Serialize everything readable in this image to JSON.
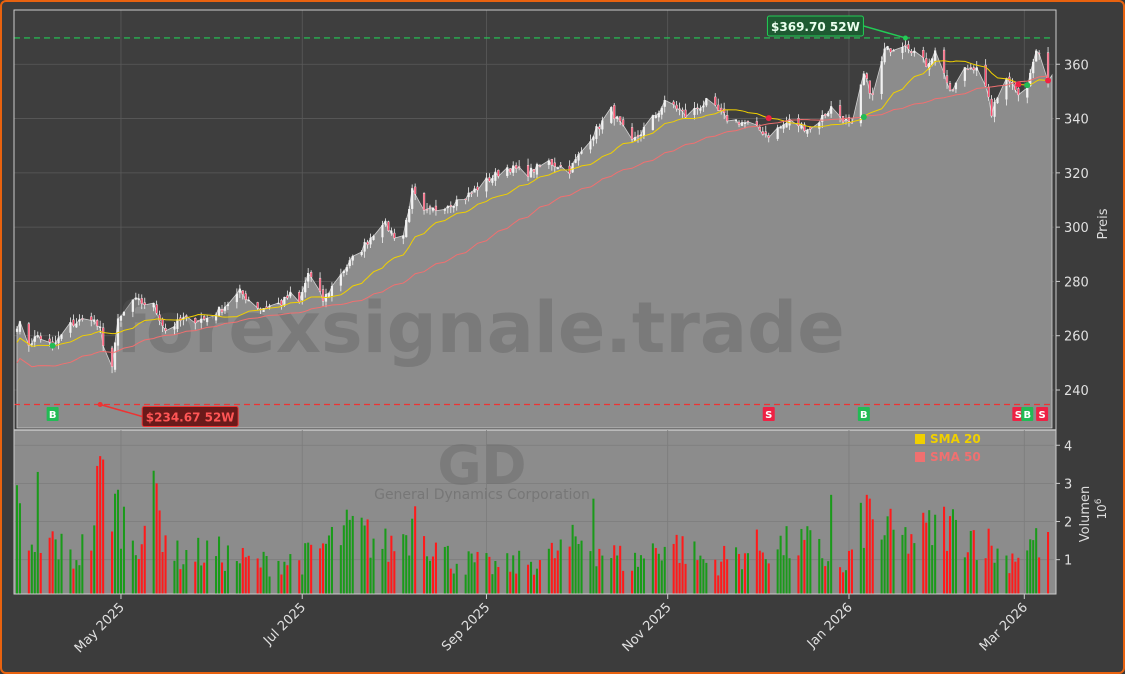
{
  "ticker": "GD",
  "company": "General Dynamics Corporation",
  "watermark": "forexsignale.trade",
  "colors": {
    "frame": "#e8620f",
    "background": "#3c3c3c",
    "plot_bg": "#8c8c8c",
    "up": "#1a9a1a",
    "down": "#ff1a1a",
    "sma20": "#f0d000",
    "sma50": "#f07070",
    "high_line": "#22cc55",
    "low_line": "#ee3333",
    "buy": "#22bb55",
    "sell": "#ee2244"
  },
  "chart_data": [
    {
      "type": "line",
      "panel": "price",
      "title": "",
      "xlabel": "",
      "ylabel": "Preis",
      "ylim": [
        226,
        380
      ],
      "yticks": [
        240,
        260,
        280,
        300,
        320,
        340,
        360
      ],
      "xlim": [
        "2025-03-26",
        "2026-03-11"
      ],
      "xticks": [
        {
          "date": "2025-05-01",
          "label": "May 2025"
        },
        {
          "date": "2025-07-01",
          "label": "Jul 2025"
        },
        {
          "date": "2025-09-01",
          "label": "Sep 2025"
        },
        {
          "date": "2025-11-01",
          "label": "Nov 2025"
        },
        {
          "date": "2026-01-01",
          "label": "Jan 2026"
        },
        {
          "date": "2026-03-01",
          "label": "Mar 2026"
        }
      ],
      "grid": true,
      "legend": "top-right",
      "price_anchors": [
        [
          "2025-03-28",
          264
        ],
        [
          "2025-03-31",
          257
        ],
        [
          "2025-04-03",
          260
        ],
        [
          "2025-04-08",
          256
        ],
        [
          "2025-04-14",
          264
        ],
        [
          "2025-04-21",
          267
        ],
        [
          "2025-04-24",
          262
        ],
        [
          "2025-04-27",
          242
        ],
        [
          "2025-04-30",
          265
        ],
        [
          "2025-05-05",
          273
        ],
        [
          "2025-05-12",
          271
        ],
        [
          "2025-05-16",
          262
        ],
        [
          "2025-05-22",
          266
        ],
        [
          "2025-05-29",
          266
        ],
        [
          "2025-06-04",
          270
        ],
        [
          "2025-06-10",
          276
        ],
        [
          "2025-06-17",
          270
        ],
        [
          "2025-06-24",
          272
        ],
        [
          "2025-06-27",
          275
        ],
        [
          "2025-06-30",
          272
        ],
        [
          "2025-07-03",
          283
        ],
        [
          "2025-07-08",
          273
        ],
        [
          "2025-07-14",
          283
        ],
        [
          "2025-07-21",
          292
        ],
        [
          "2025-07-28",
          302
        ],
        [
          "2025-08-01",
          297
        ],
        [
          "2025-08-04",
          297
        ],
        [
          "2025-08-07",
          313
        ],
        [
          "2025-08-11",
          305
        ],
        [
          "2025-08-18",
          308
        ],
        [
          "2025-08-25",
          311
        ],
        [
          "2025-09-01",
          317
        ],
        [
          "2025-09-08",
          322
        ],
        [
          "2025-09-15",
          320
        ],
        [
          "2025-09-22",
          324
        ],
        [
          "2025-09-29",
          321
        ],
        [
          "2025-10-06",
          333
        ],
        [
          "2025-10-13",
          343
        ],
        [
          "2025-10-20",
          331
        ],
        [
          "2025-10-27",
          340
        ],
        [
          "2025-11-01",
          347
        ],
        [
          "2025-11-07",
          341
        ],
        [
          "2025-11-14",
          346
        ],
        [
          "2025-11-21",
          340
        ],
        [
          "2025-11-28",
          338
        ],
        [
          "2025-12-05",
          334
        ],
        [
          "2025-12-12",
          339
        ],
        [
          "2025-12-19",
          336
        ],
        [
          "2025-12-26",
          344
        ],
        [
          "2026-01-02",
          337
        ],
        [
          "2026-01-06",
          356
        ],
        [
          "2026-01-09",
          348
        ],
        [
          "2026-01-13",
          365
        ],
        [
          "2026-01-20",
          368
        ],
        [
          "2026-01-27",
          360
        ],
        [
          "2026-01-31",
          366
        ],
        [
          "2026-02-04",
          349
        ],
        [
          "2026-02-09",
          358
        ],
        [
          "2026-02-14",
          360
        ],
        [
          "2026-02-18",
          342
        ],
        [
          "2026-02-23",
          356
        ],
        [
          "2026-02-27",
          350
        ],
        [
          "2026-03-02",
          352
        ],
        [
          "2026-03-05",
          365
        ],
        [
          "2026-03-09",
          355
        ]
      ],
      "last_price": 356,
      "annotations": [
        {
          "text": "$369.70 52W",
          "date": "2026-01-20",
          "value": 369.7,
          "kind": "high"
        },
        {
          "text": "$234.67 52W",
          "date": "2025-04-24",
          "value": 234.67,
          "kind": "low"
        }
      ],
      "signals": [
        {
          "label": "B",
          "date": "2025-04-08"
        },
        {
          "label": "S",
          "date": "2025-12-05"
        },
        {
          "label": "B",
          "date": "2026-01-06"
        },
        {
          "label": "S",
          "date": "2026-02-27"
        },
        {
          "label": "B",
          "date": "2026-03-02"
        },
        {
          "label": "S",
          "date": "2026-03-07"
        }
      ],
      "series": [
        {
          "name": "SMA 20",
          "color": "#f0d000"
        },
        {
          "name": "SMA 50",
          "color": "#f07070"
        }
      ]
    },
    {
      "type": "bar",
      "panel": "volume",
      "ylabel": "Volumen",
      "unit": "10^6",
      "ylim": [
        0.1,
        4.4
      ],
      "yticks": [
        1,
        2,
        3,
        4
      ],
      "volume_anchors": [
        [
          "2025-03-27",
          2.3
        ],
        [
          "2025-04-02",
          1.0
        ],
        [
          "2025-04-08",
          1.5
        ],
        [
          "2025-04-15",
          1.0
        ],
        [
          "2025-04-21",
          1.6
        ],
        [
          "2025-04-24",
          3.2
        ],
        [
          "2025-04-29",
          2.4
        ],
        [
          "2025-05-06",
          1.5
        ],
        [
          "2025-05-12",
          2.4
        ],
        [
          "2025-05-20",
          1.1
        ],
        [
          "2025-06-01",
          1.2
        ],
        [
          "2025-06-15",
          0.9
        ],
        [
          "2025-07-01",
          1.0
        ],
        [
          "2025-07-18",
          1.8
        ],
        [
          "2025-07-30",
          1.3
        ],
        [
          "2025-08-08",
          1.9
        ],
        [
          "2025-08-20",
          1.0
        ],
        [
          "2025-09-05",
          0.8
        ],
        [
          "2025-09-20",
          1.0
        ],
        [
          "2025-10-03",
          1.5
        ],
        [
          "2025-10-20",
          0.9
        ],
        [
          "2025-11-01",
          1.5
        ],
        [
          "2025-11-15",
          0.9
        ],
        [
          "2025-12-01",
          1.3
        ],
        [
          "2025-12-19",
          1.4
        ],
        [
          "2025-12-30",
          0.6
        ],
        [
          "2026-01-06",
          2.0
        ],
        [
          "2026-01-20",
          1.5
        ],
        [
          "2026-02-02",
          1.9
        ],
        [
          "2026-02-14",
          1.6
        ],
        [
          "2026-02-23",
          1.0
        ],
        [
          "2026-03-04",
          1.5
        ],
        [
          "2026-03-09",
          1.3
        ]
      ],
      "volume_spikes": [
        {
          "date": "2025-04-03",
          "value": 3.3
        },
        {
          "date": "2025-04-27",
          "value": 3.2
        },
        {
          "date": "2025-05-13",
          "value": 3.0
        },
        {
          "date": "2025-08-08",
          "value": 2.4
        },
        {
          "date": "2025-10-07",
          "value": 2.6
        },
        {
          "date": "2025-12-26",
          "value": 2.7
        },
        {
          "date": "2026-01-07",
          "value": 2.7
        },
        {
          "date": "2026-01-08",
          "value": 2.6
        }
      ]
    }
  ]
}
